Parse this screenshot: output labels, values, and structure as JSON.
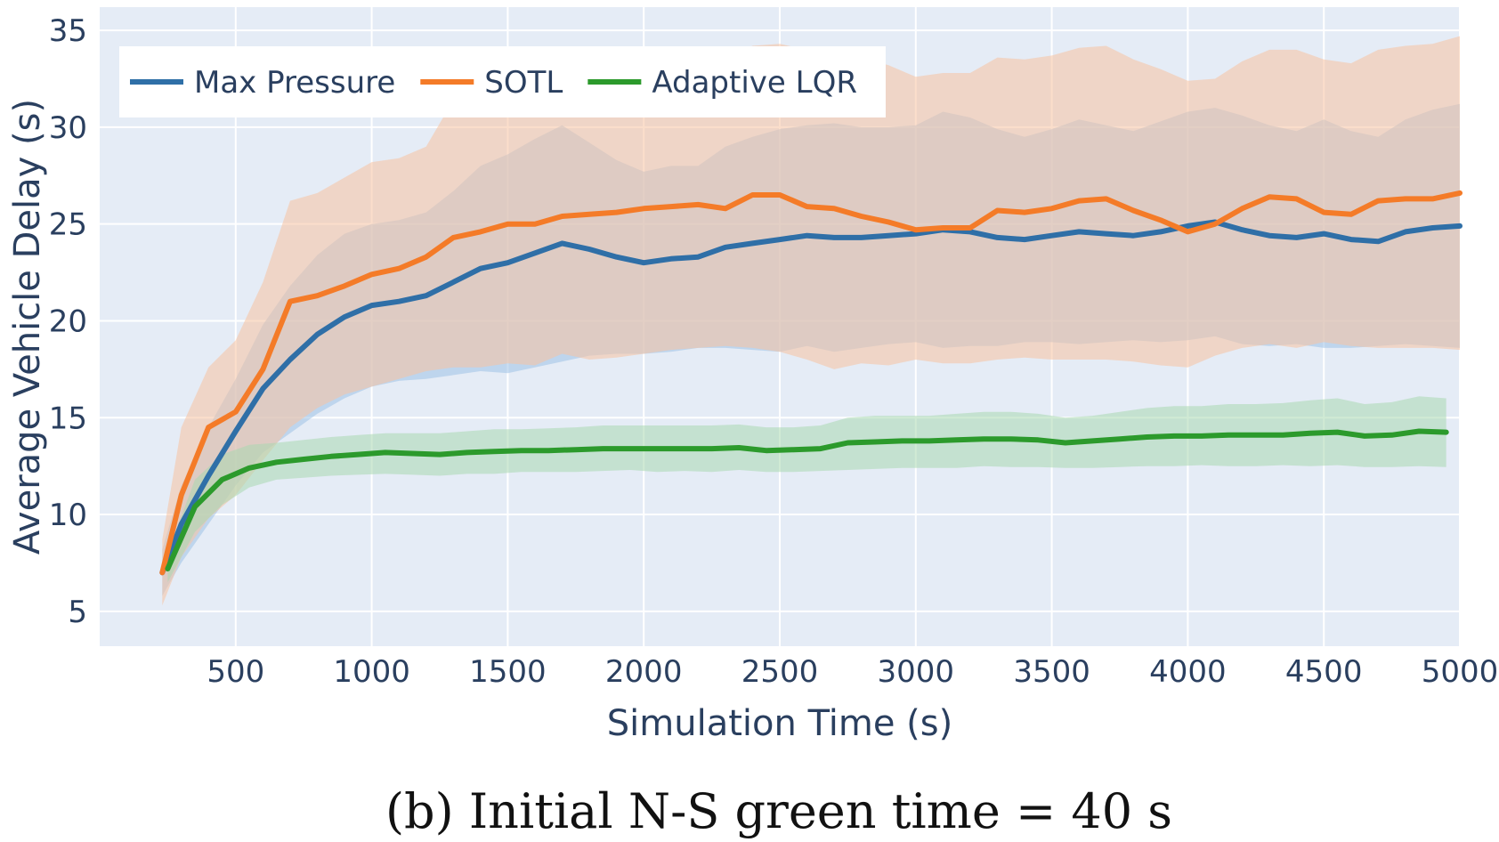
{
  "chart_data": {
    "type": "line",
    "xlabel": "Simulation Time (s)",
    "ylabel": "Average Vehicle Delay (s)",
    "caption": "(b) Initial N-S green time = 40 s",
    "xlim": [
      0,
      5000
    ],
    "ylim": [
      3.2,
      36.2
    ],
    "xticks": [
      500,
      1000,
      1500,
      2000,
      2500,
      3000,
      3500,
      4000,
      4500,
      5000
    ],
    "yticks": [
      5,
      10,
      15,
      20,
      25,
      30,
      35
    ],
    "grid": true,
    "legend_position": "top-left",
    "background": "#e5ecf6",
    "series": [
      {
        "name": "Max Pressure",
        "color": "#2f6fa7",
        "band_color": "#9ec2e6",
        "x": [
          230,
          300,
          400,
          500,
          600,
          700,
          800,
          900,
          1000,
          1100,
          1200,
          1300,
          1400,
          1500,
          1600,
          1700,
          1800,
          1900,
          2000,
          2100,
          2200,
          2300,
          2400,
          2500,
          2600,
          2700,
          2800,
          2900,
          3000,
          3100,
          3200,
          3300,
          3400,
          3500,
          3600,
          3700,
          3800,
          3900,
          4000,
          4100,
          4200,
          4300,
          4400,
          4500,
          4600,
          4700,
          4800,
          4900,
          5000
        ],
        "y": [
          7.0,
          9.5,
          12.0,
          14.3,
          16.5,
          18.0,
          19.3,
          20.2,
          20.8,
          21.0,
          21.3,
          22.0,
          22.7,
          23.0,
          23.5,
          24.0,
          23.7,
          23.3,
          23.0,
          23.2,
          23.3,
          23.8,
          24.0,
          24.2,
          24.4,
          24.3,
          24.3,
          24.4,
          24.5,
          24.7,
          24.6,
          24.3,
          24.2,
          24.4,
          24.6,
          24.5,
          24.4,
          24.6,
          24.9,
          25.1,
          24.7,
          24.4,
          24.3,
          24.5,
          24.2,
          24.1,
          24.6,
          24.8,
          24.9
        ],
        "lower": [
          5.8,
          7.5,
          9.5,
          11.5,
          13.2,
          14.2,
          15.2,
          16.0,
          16.6,
          16.9,
          17.0,
          17.2,
          17.4,
          17.3,
          17.6,
          17.9,
          18.2,
          18.3,
          18.3,
          18.4,
          18.6,
          18.6,
          18.5,
          18.4,
          18.7,
          18.4,
          18.6,
          18.8,
          18.9,
          18.6,
          18.7,
          18.7,
          18.9,
          18.9,
          18.8,
          18.9,
          19.0,
          18.9,
          19.0,
          19.2,
          18.8,
          18.7,
          18.8,
          18.6,
          18.6,
          18.7,
          18.8,
          18.7,
          18.6
        ],
        "upper": [
          8.2,
          11.5,
          14.5,
          17.0,
          19.8,
          21.8,
          23.4,
          24.5,
          25.0,
          25.2,
          25.6,
          26.7,
          28.0,
          28.6,
          29.4,
          30.1,
          29.2,
          28.3,
          27.7,
          28.0,
          28.0,
          29.0,
          29.5,
          29.9,
          30.1,
          30.2,
          30.0,
          30.0,
          30.1,
          30.8,
          30.5,
          29.9,
          29.5,
          29.9,
          30.4,
          30.1,
          29.8,
          30.3,
          30.8,
          31.0,
          30.6,
          30.1,
          29.8,
          30.4,
          29.8,
          29.5,
          30.4,
          30.9,
          31.2
        ]
      },
      {
        "name": "SOTL",
        "color": "#f47b28",
        "band_color": "#f7c3a0",
        "x": [
          230,
          300,
          400,
          500,
          600,
          700,
          800,
          900,
          1000,
          1100,
          1200,
          1300,
          1400,
          1500,
          1600,
          1700,
          1800,
          1900,
          2000,
          2100,
          2200,
          2300,
          2400,
          2500,
          2600,
          2700,
          2800,
          2900,
          3000,
          3100,
          3200,
          3300,
          3400,
          3500,
          3600,
          3700,
          3800,
          3900,
          4000,
          4100,
          4200,
          4300,
          4400,
          4500,
          4600,
          4700,
          4800,
          4900,
          5000
        ],
        "y": [
          7.0,
          11.0,
          14.5,
          15.3,
          17.5,
          21.0,
          21.3,
          21.8,
          22.4,
          22.7,
          23.3,
          24.3,
          24.6,
          25.0,
          25.0,
          25.4,
          25.5,
          25.6,
          25.8,
          25.9,
          26.0,
          25.8,
          26.5,
          26.5,
          25.9,
          25.8,
          25.4,
          25.1,
          24.7,
          24.8,
          24.8,
          25.7,
          25.6,
          25.8,
          26.2,
          26.3,
          25.7,
          25.2,
          24.6,
          25.0,
          25.8,
          26.4,
          26.3,
          25.6,
          25.5,
          26.2,
          26.3,
          26.3,
          26.6
        ],
        "lower": [
          5.3,
          7.8,
          9.8,
          11.0,
          12.8,
          14.5,
          15.5,
          16.2,
          16.6,
          17.0,
          17.4,
          17.6,
          17.6,
          17.8,
          17.7,
          18.3,
          18.0,
          18.1,
          18.3,
          18.5,
          18.6,
          18.7,
          18.6,
          18.4,
          18.0,
          17.5,
          17.8,
          17.7,
          18.0,
          17.8,
          17.8,
          18.0,
          18.1,
          18.0,
          18.0,
          18.0,
          17.9,
          17.7,
          17.6,
          18.2,
          18.6,
          18.8,
          18.6,
          18.9,
          18.7,
          18.6,
          18.6,
          18.6,
          18.5
        ],
        "upper": [
          8.7,
          14.5,
          17.6,
          19.0,
          22.0,
          26.2,
          26.6,
          27.4,
          28.2,
          28.4,
          29.0,
          31.4,
          32.6,
          33.0,
          33.5,
          33.6,
          33.8,
          34.0,
          33.7,
          33.8,
          33.9,
          33.6,
          34.2,
          34.3,
          34.0,
          33.9,
          33.6,
          33.2,
          32.6,
          32.8,
          32.8,
          33.6,
          33.5,
          33.7,
          34.1,
          34.2,
          33.5,
          33.0,
          32.4,
          32.5,
          33.4,
          34.0,
          34.0,
          33.5,
          33.3,
          34.0,
          34.2,
          34.3,
          34.7
        ]
      },
      {
        "name": "Adaptive LQR",
        "color": "#2c9a2c",
        "band_color": "#a9d8b0",
        "x": [
          250,
          350,
          450,
          550,
          650,
          750,
          850,
          950,
          1050,
          1150,
          1250,
          1350,
          1450,
          1550,
          1650,
          1750,
          1850,
          1950,
          2050,
          2150,
          2250,
          2350,
          2450,
          2550,
          2650,
          2750,
          2850,
          2950,
          3050,
          3150,
          3250,
          3350,
          3450,
          3550,
          3650,
          3750,
          3850,
          3950,
          4050,
          4150,
          4250,
          4350,
          4450,
          4550,
          4650,
          4750,
          4850,
          4950
        ],
        "y": [
          7.2,
          10.4,
          11.8,
          12.4,
          12.7,
          12.85,
          13.0,
          13.1,
          13.2,
          13.15,
          13.1,
          13.2,
          13.25,
          13.3,
          13.3,
          13.35,
          13.4,
          13.4,
          13.4,
          13.4,
          13.4,
          13.45,
          13.3,
          13.35,
          13.4,
          13.7,
          13.75,
          13.8,
          13.8,
          13.85,
          13.9,
          13.9,
          13.85,
          13.7,
          13.8,
          13.9,
          14.0,
          14.05,
          14.05,
          14.1,
          14.1,
          14.1,
          14.2,
          14.25,
          14.05,
          14.1,
          14.3,
          14.25
        ],
        "lower": [
          6.5,
          9.1,
          10.5,
          11.4,
          11.8,
          11.9,
          12.0,
          12.05,
          12.1,
          12.05,
          12.0,
          12.1,
          12.1,
          12.2,
          12.2,
          12.2,
          12.25,
          12.3,
          12.2,
          12.25,
          12.2,
          12.3,
          12.2,
          12.2,
          12.25,
          12.3,
          12.35,
          12.4,
          12.4,
          12.4,
          12.5,
          12.45,
          12.45,
          12.4,
          12.4,
          12.45,
          12.5,
          12.5,
          12.55,
          12.5,
          12.5,
          12.55,
          12.5,
          12.55,
          12.45,
          12.45,
          12.5,
          12.45
        ],
        "upper": [
          8.0,
          11.8,
          13.1,
          13.6,
          13.7,
          13.85,
          14.0,
          14.1,
          14.2,
          14.2,
          14.2,
          14.3,
          14.4,
          14.4,
          14.45,
          14.5,
          14.6,
          14.6,
          14.6,
          14.6,
          14.6,
          14.65,
          14.5,
          14.5,
          14.6,
          15.0,
          15.1,
          15.1,
          15.1,
          15.2,
          15.3,
          15.3,
          15.2,
          15.0,
          15.1,
          15.3,
          15.5,
          15.6,
          15.6,
          15.7,
          15.7,
          15.75,
          15.9,
          16.0,
          15.7,
          15.8,
          16.1,
          16.0
        ]
      }
    ]
  }
}
